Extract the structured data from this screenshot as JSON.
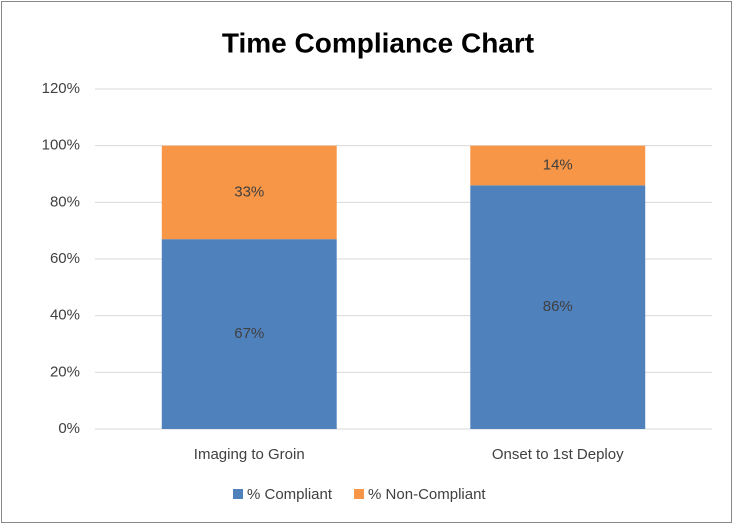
{
  "chart_data": {
    "type": "stacked_bar",
    "title": "Time Compliance Chart",
    "categories": [
      "Imaging to Groin",
      "Onset to 1st Deploy"
    ],
    "series": [
      {
        "name": "% Compliant",
        "color": "#4f81bd",
        "values": [
          67,
          86
        ],
        "value_labels": [
          "67%",
          "86%"
        ]
      },
      {
        "name": "% Non-Compliant",
        "color": "#f79646",
        "values": [
          33,
          14
        ],
        "value_labels": [
          "33%",
          "14%"
        ]
      }
    ],
    "ylim": [
      0,
      120
    ],
    "yticks": [
      {
        "value": 0,
        "label": "0%"
      },
      {
        "value": 20,
        "label": "20%"
      },
      {
        "value": 40,
        "label": "40%"
      },
      {
        "value": 60,
        "label": "60%"
      },
      {
        "value": 80,
        "label": "80%"
      },
      {
        "value": 100,
        "label": "100%"
      },
      {
        "value": 120,
        "label": "120%"
      }
    ],
    "grid": true,
    "legend": "bottom"
  }
}
